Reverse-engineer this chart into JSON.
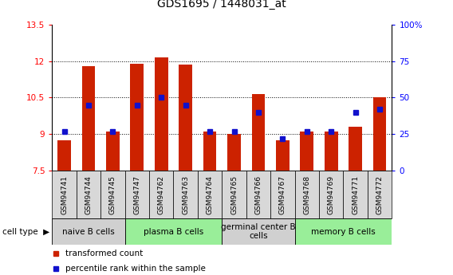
{
  "title": "GDS1695 / 1448031_at",
  "samples": [
    "GSM94741",
    "GSM94744",
    "GSM94745",
    "GSM94747",
    "GSM94762",
    "GSM94763",
    "GSM94764",
    "GSM94765",
    "GSM94766",
    "GSM94767",
    "GSM94768",
    "GSM94769",
    "GSM94771",
    "GSM94772"
  ],
  "transformed_count": [
    8.75,
    11.8,
    9.1,
    11.9,
    12.15,
    11.85,
    9.1,
    9.0,
    10.65,
    8.75,
    9.1,
    9.1,
    9.3,
    10.5
  ],
  "percentile_rank": [
    27,
    45,
    27,
    45,
    50,
    45,
    27,
    27,
    40,
    22,
    27,
    27,
    40,
    42
  ],
  "ymin": 7.5,
  "ymax": 13.5,
  "yticks": [
    7.5,
    9.0,
    10.5,
    12.0,
    13.5
  ],
  "ytick_labels": [
    "7.5",
    "9",
    "10.5",
    "12",
    "13.5"
  ],
  "y2min": 0,
  "y2max": 100,
  "y2ticks": [
    0,
    25,
    50,
    75,
    100
  ],
  "y2tick_labels": [
    "0",
    "25",
    "50",
    "75",
    "100%"
  ],
  "bar_color": "#cc2200",
  "dot_color": "#1111cc",
  "bar_width": 0.55,
  "baseline": 7.5,
  "cell_types": [
    {
      "label": "naive B cells",
      "start": 0,
      "end": 3,
      "color": "#d0d0d0"
    },
    {
      "label": "plasma B cells",
      "start": 3,
      "end": 7,
      "color": "#99ee99"
    },
    {
      "label": "germinal center B\ncells",
      "start": 7,
      "end": 10,
      "color": "#d0d0d0"
    },
    {
      "label": "memory B cells",
      "start": 10,
      "end": 14,
      "color": "#99ee99"
    }
  ],
  "legend_items": [
    {
      "label": "transformed count",
      "color": "#cc2200"
    },
    {
      "label": "percentile rank within the sample",
      "color": "#1111cc"
    }
  ],
  "title_fontsize": 10,
  "tick_fontsize": 7.5,
  "sample_fontsize": 6.5,
  "cell_fontsize": 7.5,
  "legend_fontsize": 7.5,
  "grid_lines": [
    9.0,
    10.5,
    12.0
  ],
  "sample_box_color": "#d8d8d8",
  "cell_type_label": "cell type"
}
